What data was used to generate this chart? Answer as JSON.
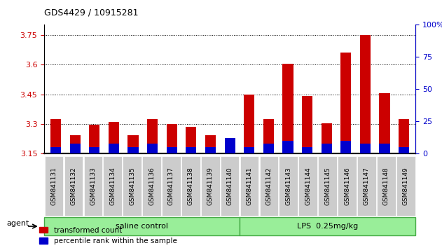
{
  "title": "GDS4429 / 10915281",
  "samples": [
    "GSM841131",
    "GSM841132",
    "GSM841133",
    "GSM841134",
    "GSM841135",
    "GSM841136",
    "GSM841137",
    "GSM841138",
    "GSM841139",
    "GSM841140",
    "GSM841141",
    "GSM841142",
    "GSM841143",
    "GSM841144",
    "GSM841145",
    "GSM841146",
    "GSM841147",
    "GSM841148",
    "GSM841149"
  ],
  "red_values": [
    3.325,
    3.245,
    3.295,
    3.31,
    3.245,
    3.325,
    3.3,
    3.285,
    3.245,
    3.215,
    3.45,
    3.325,
    3.605,
    3.44,
    3.305,
    3.66,
    3.75,
    3.455,
    3.325
  ],
  "blue_percentiles": [
    5,
    8,
    5,
    8,
    5,
    8,
    5,
    5,
    5,
    12,
    5,
    8,
    10,
    5,
    8,
    10,
    8,
    8,
    5
  ],
  "ylim_left": [
    3.15,
    3.8
  ],
  "ylim_right": [
    0,
    100
  ],
  "yticks_left": [
    3.15,
    3.3,
    3.45,
    3.6,
    3.75
  ],
  "yticks_right": [
    0,
    25,
    50,
    75,
    100
  ],
  "yticklabels_left": [
    "3.15",
    "3.3",
    "3.45",
    "3.6",
    "3.75"
  ],
  "yticklabels_right": [
    "0",
    "25",
    "50",
    "75",
    "100%"
  ],
  "left_color": "#cc0000",
  "right_color": "#0000cc",
  "bar_width": 0.55,
  "group1_label": "saline control",
  "group2_label": "LPS  0.25mg/kg",
  "group1_count": 10,
  "group2_count": 9,
  "legend_red": "transformed count",
  "legend_blue": "percentile rank within the sample",
  "agent_label": "agent",
  "background_color": "#ffffff",
  "group_bg_color": "#99ee99",
  "group_edge_color": "#44aa44",
  "tick_label_bg": "#cccccc",
  "grid_color": "#000000"
}
